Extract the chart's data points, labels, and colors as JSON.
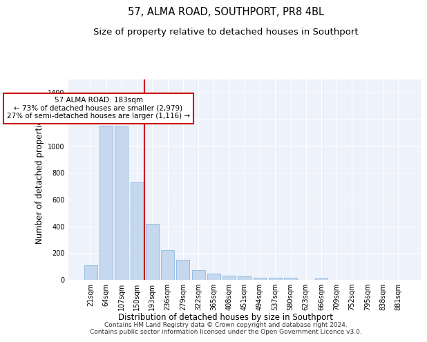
{
  "title": "57, ALMA ROAD, SOUTHPORT, PR8 4BL",
  "subtitle": "Size of property relative to detached houses in Southport",
  "xlabel": "Distribution of detached houses by size in Southport",
  "ylabel": "Number of detached properties",
  "categories": [
    "21sqm",
    "64sqm",
    "107sqm",
    "150sqm",
    "193sqm",
    "236sqm",
    "279sqm",
    "322sqm",
    "365sqm",
    "408sqm",
    "451sqm",
    "494sqm",
    "537sqm",
    "580sqm",
    "623sqm",
    "666sqm",
    "709sqm",
    "752sqm",
    "795sqm",
    "838sqm",
    "881sqm"
  ],
  "values": [
    110,
    1155,
    1150,
    730,
    420,
    220,
    150,
    70,
    48,
    32,
    28,
    18,
    15,
    15,
    0,
    12,
    0,
    0,
    0,
    0,
    0
  ],
  "bar_color": "#c5d8f0",
  "bar_edge_color": "#7baed4",
  "vline_color": "#cc0000",
  "vline_index": 4,
  "annotation_text": "57 ALMA ROAD: 183sqm\n← 73% of detached houses are smaller (2,979)\n27% of semi-detached houses are larger (1,116) →",
  "annotation_box_edgecolor": "#cc0000",
  "footer": "Contains HM Land Registry data © Crown copyright and database right 2024.\nContains public sector information licensed under the Open Government Licence v3.0.",
  "ylim": [
    0,
    1500
  ],
  "yticks": [
    0,
    200,
    400,
    600,
    800,
    1000,
    1200,
    1400
  ],
  "bg_color": "#edf2fb",
  "grid_color": "#ffffff",
  "title_fontsize": 10.5,
  "subtitle_fontsize": 9.5,
  "tick_fontsize": 7,
  "ylabel_fontsize": 8.5,
  "xlabel_fontsize": 8.5,
  "annotation_fontsize": 7.5,
  "footer_fontsize": 6.5
}
